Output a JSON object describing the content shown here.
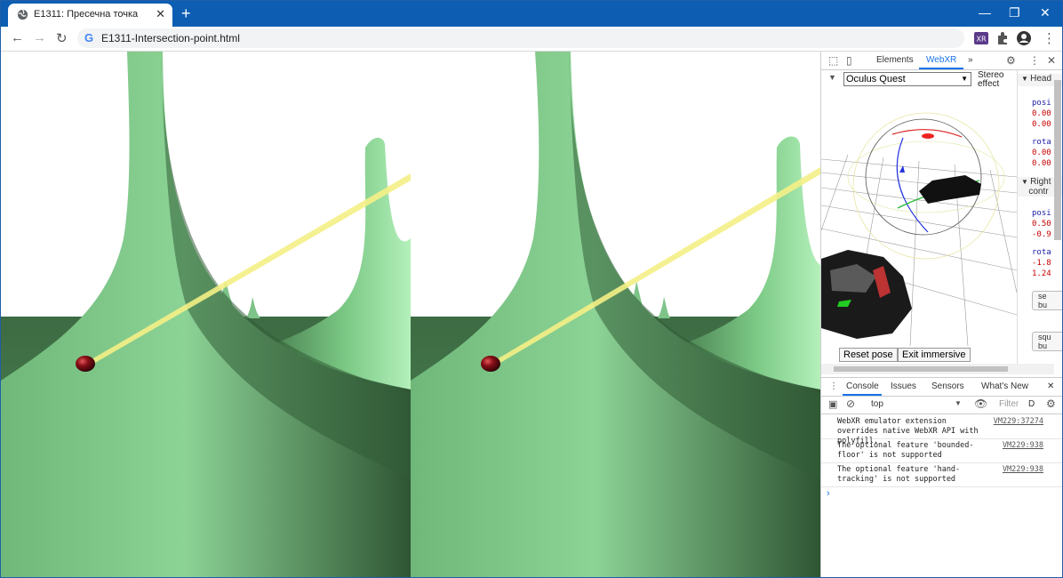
{
  "browser": {
    "tab_title": "E1311: Пресечна точка",
    "url": "E1311-Intersection-point.html",
    "new_tab": "+",
    "tab_close": "✕",
    "minimize": "—",
    "restore": "❐",
    "close": "✕"
  },
  "devtools": {
    "tabs": [
      "Elements",
      "WebXR"
    ],
    "more": "»",
    "device": "Oculus Quest",
    "stereo_label_1": "Stereo",
    "stereo_label_2": "effect",
    "reset_pose": "Reset pose",
    "exit_immersive": "Exit immersive",
    "side": {
      "head_header": "Head",
      "pos_label": "posi",
      "head_pos": [
        "0.00",
        "0.00"
      ],
      "rot_label": "rota",
      "head_rot": [
        "0.00",
        "0.00"
      ],
      "right_header_1": "Right",
      "right_header_2": "contr",
      "right_pos": [
        "0.50",
        "-0.9"
      ],
      "right_rot": [
        "-1.8",
        "1.24"
      ],
      "btn1": [
        "se",
        "bu"
      ],
      "btn2": [
        "squ",
        "bu"
      ]
    },
    "console_tabs": [
      "Console",
      "Issues",
      "Sensors",
      "What's New"
    ],
    "context": "top",
    "filter": "Filter",
    "level": "D",
    "messages": [
      {
        "text": "WebXR emulator extension overrides native WebXR API with polyfill.",
        "source": "VM229:37274"
      },
      {
        "text": "The optional feature 'bounded-floor' is not supported",
        "source": "VM229:938"
      },
      {
        "text": "The optional feature 'hand-tracking' is not supported",
        "source": "VM229:938"
      }
    ],
    "prompt": "›"
  },
  "colors": {
    "titlebar": "#0d5eb3",
    "ground": "#3f6f45",
    "shape": "#7ec388",
    "ray": "#f4f086",
    "sphere": "#8a0f18"
  }
}
